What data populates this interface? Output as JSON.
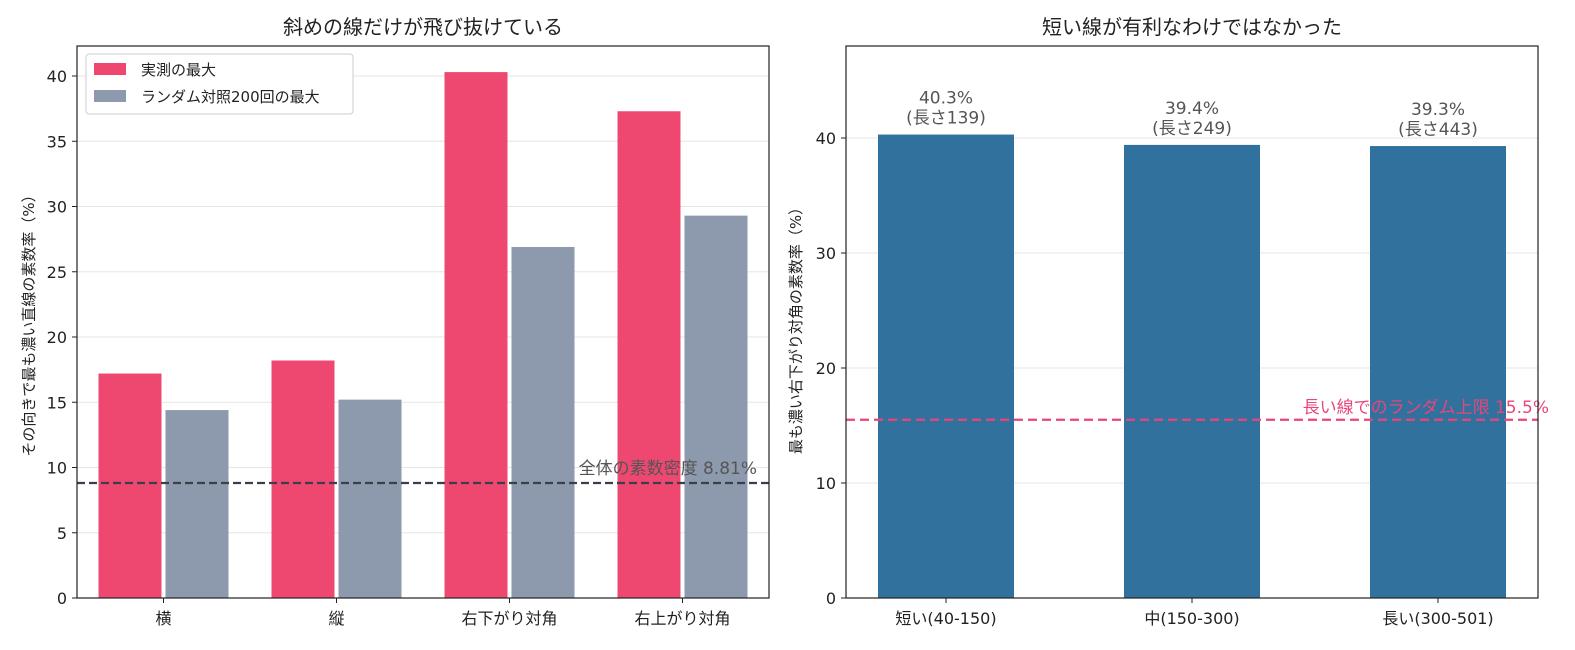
{
  "colors": {
    "actual": "#ee4870",
    "random": "#8d9aae",
    "bar_right": "#30719e",
    "line_left": "#3b3f4c",
    "line_right": "#e8467a"
  },
  "chart_data": [
    {
      "type": "bar",
      "title": "斜めの線だけが飛び抜けている",
      "xlabel": "",
      "ylabel": "その向きで最も濃い直線の素数率（%）",
      "categories": [
        "横",
        "縦",
        "右下がり対角",
        "右上がり対角"
      ],
      "series": [
        {
          "name": "実測の最大",
          "values": [
            17.2,
            18.2,
            40.3,
            37.3
          ]
        },
        {
          "name": "ランダム対照200回の最大",
          "values": [
            14.4,
            15.2,
            26.9,
            29.3
          ]
        }
      ],
      "ylim": [
        0,
        42.3
      ],
      "yticks": [
        "0",
        "5",
        "10",
        "15",
        "20",
        "25",
        "30",
        "35",
        "40"
      ],
      "grid": "horizontal",
      "legend": "top-left",
      "reference_line": {
        "value": 8.81,
        "label": "全体の素数密度 8.81%"
      }
    },
    {
      "type": "bar",
      "title": "短い線が有利なわけではなかった",
      "xlabel": "",
      "ylabel": "最も濃い右下がり対角の素数率（%）",
      "categories": [
        "短い(40-150)",
        "中(150-300)",
        "長い(300-501)"
      ],
      "values": [
        40.3,
        39.4,
        39.3
      ],
      "bar_labels": [
        [
          "40.3%",
          "(長さ139)"
        ],
        [
          "39.4%",
          "(長さ249)"
        ],
        [
          "39.3%",
          "(長さ443)"
        ]
      ],
      "ylim": [
        0,
        48
      ],
      "yticks": [
        "0",
        "10",
        "20",
        "30",
        "40"
      ],
      "grid": "horizontal",
      "reference_line": {
        "value": 15.5,
        "label": "長い線でのランダム上限 15.5%"
      }
    }
  ]
}
